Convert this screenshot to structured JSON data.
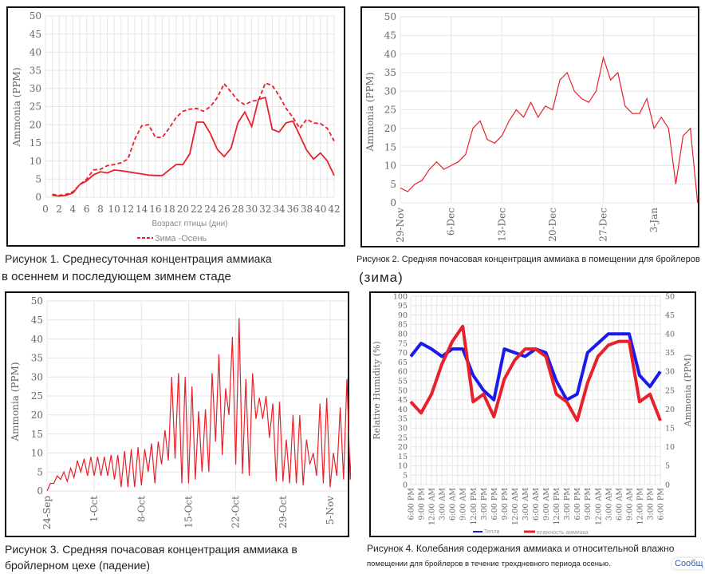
{
  "figures": [
    {
      "caption_line1": "Рисунок 1. Среднесуточная концентрация аммиака",
      "caption_line2": "в осеннем и последующем зимнем стаде"
    },
    {
      "caption_line1": "Рисунок 2. Средняя почасовая концентрация аммиака в помещении для бройлеров",
      "caption_line2": "(зима)"
    },
    {
      "caption_line1": "Рисунок 3. Средняя почасовая концентрация аммиака в",
      "caption_line2": "бройлерном цехе (падение)"
    },
    {
      "caption_line1": "Рисунок 4. Колебания содержания аммиака и относительной влажно",
      "caption_line2": "помещении для бройлеров в течение трехдневного периода осенью."
    }
  ],
  "overlay_text": "Сообщ",
  "colors": {
    "ammonia": "#e8202a",
    "humidity": "#1a1aee",
    "grid": "#e6e6e6"
  },
  "chart_data": [
    {
      "type": "line",
      "title": "",
      "xlabel": "Возраст птицы (дни)",
      "ylabel": "Ammonia (PPM)",
      "xlim": [
        0,
        42
      ],
      "ylim": [
        0,
        50
      ],
      "xticks": [
        0,
        2,
        4,
        6,
        8,
        10,
        12,
        14,
        16,
        18,
        20,
        22,
        24,
        26,
        28,
        30,
        32,
        34,
        36,
        38,
        40,
        42
      ],
      "yticks": [
        0,
        5,
        10,
        15,
        20,
        25,
        30,
        35,
        40,
        45,
        50
      ],
      "grid": true,
      "legend": "bottom",
      "x": [
        1,
        2,
        3,
        4,
        5,
        6,
        7,
        8,
        9,
        10,
        11,
        12,
        13,
        14,
        15,
        16,
        17,
        18,
        19,
        20,
        21,
        22,
        23,
        24,
        25,
        26,
        27,
        28,
        29,
        30,
        31,
        32,
        33,
        34,
        35,
        36,
        37,
        38,
        39,
        40,
        41,
        42
      ],
      "series": [
        {
          "style": "solid",
          "values": [
            0.5,
            0.3,
            0.5,
            1.2,
            3.5,
            4.5,
            6.2,
            7,
            6.7,
            7.5,
            7.3,
            7,
            6.7,
            6.4,
            6.1,
            6,
            6,
            7.5,
            9,
            9,
            12,
            20.7,
            20.7,
            17.5,
            13.2,
            11.2,
            13.5,
            20.5,
            23.5,
            19.5,
            27,
            27.5,
            18.7,
            18,
            20.5,
            21,
            17,
            13,
            10.5,
            12.2,
            10,
            6
          ]
        },
        {
          "style": "dashed",
          "name": "Зима -Осень",
          "values": [
            0.8,
            0.5,
            0.8,
            1.5,
            3.5,
            5,
            7.5,
            7.7,
            8.7,
            9,
            9.5,
            10.5,
            16,
            19.7,
            20,
            16.5,
            16.5,
            19,
            22,
            23.7,
            24.3,
            24.5,
            23.7,
            25,
            27.5,
            31.3,
            29,
            26.7,
            25.5,
            26.5,
            26.8,
            31.5,
            30.8,
            28,
            24.5,
            22,
            19,
            21.5,
            20.5,
            20.3,
            19,
            15.5
          ]
        }
      ]
    },
    {
      "type": "line",
      "title": "",
      "ylabel": "Ammonia (PPM)",
      "ylim": [
        0,
        50
      ],
      "yticks": [
        0,
        5,
        10,
        15,
        20,
        25,
        30,
        35,
        40,
        45,
        50
      ],
      "grid": true,
      "xticks": [
        "29-Nov",
        "6-Dec",
        "13-Dec",
        "20-Dec",
        "27-Dec",
        "3-Jan"
      ],
      "x": [
        "29-Nov",
        "30-Nov",
        "1-Dec",
        "2-Dec",
        "3-Dec",
        "4-Dec",
        "5-Dec",
        "6-Dec",
        "7-Dec",
        "8-Dec",
        "9-Dec",
        "10-Dec",
        "11-Dec",
        "12-Dec",
        "13-Dec",
        "14-Dec",
        "15-Dec",
        "16-Dec",
        "17-Dec",
        "18-Dec",
        "19-Dec",
        "20-Dec",
        "21-Dec",
        "22-Dec",
        "23-Dec",
        "24-Dec",
        "25-Dec",
        "26-Dec",
        "27-Dec",
        "28-Dec",
        "29-Dec",
        "30-Dec",
        "31-Dec",
        "1-Jan",
        "2-Jan",
        "3-Jan",
        "4-Jan",
        "5-Jan",
        "6-Jan",
        "7-Jan",
        "8-Jan",
        "9-Jan"
      ],
      "series": [
        {
          "values": [
            4,
            3,
            5,
            6,
            9,
            11,
            9,
            10,
            11,
            13,
            20,
            22,
            17,
            16,
            18,
            22,
            25,
            23,
            27,
            23,
            26,
            25,
            33,
            35,
            30,
            28,
            27,
            30,
            39,
            33,
            35,
            26,
            24,
            24,
            28,
            20,
            23,
            20,
            5,
            18,
            20,
            0
          ]
        }
      ]
    },
    {
      "type": "line",
      "title": "",
      "ylabel": "Ammonia (PPM)",
      "ylim": [
        0,
        50
      ],
      "yticks": [
        0,
        5,
        10,
        15,
        20,
        25,
        30,
        35,
        40,
        45,
        50
      ],
      "grid": true,
      "xticks": [
        "24-Sep",
        "1-Oct",
        "8-Oct",
        "15-Oct",
        "22-Oct",
        "29-Oct",
        "5-Nov"
      ],
      "x": [
        "24-Sep",
        "25-Sep",
        "26-Sep",
        "27-Sep",
        "28-Sep",
        "29-Sep",
        "30-Sep",
        "1-Oct",
        "2-Oct",
        "3-Oct",
        "4-Oct",
        "5-Oct",
        "6-Oct",
        "7-Oct",
        "8-Oct",
        "9-Oct",
        "10-Oct",
        "11-Oct",
        "12-Oct",
        "13-Oct",
        "14-Oct",
        "15-Oct",
        "16-Oct",
        "17-Oct",
        "18-Oct",
        "19-Oct",
        "20-Oct",
        "21-Oct",
        "22-Oct",
        "23-Oct",
        "24-Oct",
        "25-Oct",
        "26-Oct",
        "27-Oct",
        "28-Oct",
        "29-Oct",
        "30-Oct",
        "31-Oct",
        "1-Nov",
        "2-Nov",
        "3-Nov",
        "4-Nov",
        "5-Nov",
        "6-Nov",
        "7-Nov",
        "8-Nov"
      ],
      "daily_trough": [
        0,
        2,
        3,
        2.5,
        3.5,
        5,
        4,
        4,
        4,
        4,
        3,
        1,
        1,
        1,
        1.5,
        5,
        2,
        7,
        8,
        8.5,
        2,
        2,
        3,
        5,
        5,
        13,
        9.5,
        20,
        7,
        4.5,
        4,
        19,
        19,
        14,
        2.5,
        2.5,
        2,
        2,
        1.5,
        7,
        4,
        2,
        1,
        4,
        3,
        3
      ],
      "daily_peak": [
        2,
        4,
        5,
        6,
        8,
        8.5,
        9,
        9,
        9,
        9.5,
        9.5,
        10.5,
        11,
        11.5,
        11,
        12.5,
        13,
        16,
        30,
        31,
        30,
        27.5,
        21,
        21.5,
        31,
        36,
        27,
        40.5,
        45.5,
        29.5,
        31,
        24.5,
        25,
        23,
        23.5,
        13.5,
        20,
        20,
        13.5,
        10,
        23,
        24.5,
        10,
        22,
        29.5,
        25
      ]
    },
    {
      "type": "line",
      "title": "",
      "ylabel": "Relative Humidity (%)",
      "y2label": "Ammonia (PPM)",
      "ylim": [
        0,
        100
      ],
      "y2lim": [
        0,
        50
      ],
      "yticks": [
        0,
        5,
        10,
        15,
        20,
        25,
        30,
        35,
        40,
        45,
        50,
        55,
        60,
        65,
        70,
        75,
        80,
        85,
        90,
        95,
        100
      ],
      "y2ticks": [
        0,
        5,
        10,
        15,
        20,
        25,
        30,
        35,
        40,
        45,
        50
      ],
      "grid": true,
      "legend": "bottom",
      "x": [
        "6:00 PM",
        "9:00 PM",
        "12:00 AM",
        "3:00 AM",
        "6:00 AM",
        "9:00 AM",
        "12:00 PM",
        "3:00 PM",
        "6:00 PM",
        "9:00 PM",
        "12:00 AM",
        "3:00 AM",
        "6:00 AM",
        "9:00 AM",
        "12:00 PM",
        "3:00 PM",
        "6:00 PM",
        "9:00 PM",
        "12:00 AM",
        "3:00 AM",
        "6:00 AM",
        "9:00 AM",
        "12:00 PM",
        "3:00 PM",
        "6:00 PM"
      ],
      "series": [
        {
          "name": "Тепла",
          "color": "#1a1aee",
          "axis": "left",
          "values": [
            68,
            75,
            72,
            68,
            72,
            72,
            58,
            50,
            45,
            72,
            70,
            68,
            72,
            70,
            55,
            45,
            48,
            70,
            75,
            80,
            80,
            80,
            58,
            52,
            60
          ]
        },
        {
          "name": "влажность аммиака",
          "color": "#e8202a",
          "axis": "right",
          "values": [
            22,
            19,
            24,
            32,
            38,
            42,
            22,
            24,
            18,
            28,
            33,
            36,
            36,
            34,
            24,
            22,
            17,
            27,
            34,
            37,
            38,
            38,
            22,
            24,
            17
          ]
        }
      ]
    }
  ]
}
